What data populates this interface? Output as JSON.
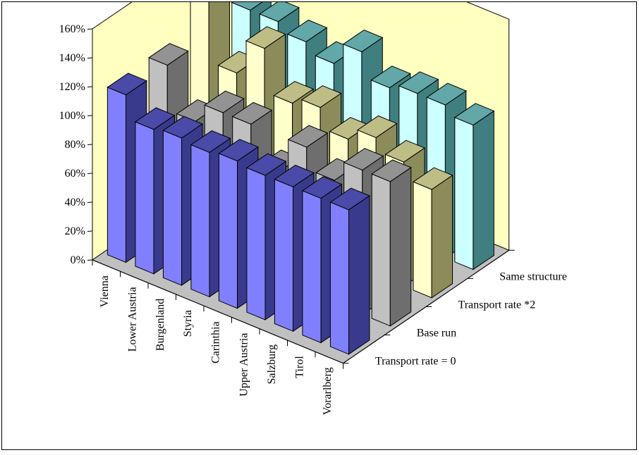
{
  "chart_data": {
    "type": "bar",
    "subtype": "3d-column",
    "categories": [
      "Vienna",
      "Lower Austria",
      "Burgenland",
      "Styria",
      "Carinthia",
      "Upper Austria",
      "Salzburg",
      "Tirol",
      "Vorarlberg"
    ],
    "series": [
      {
        "name": "Transport rate = 0",
        "values": [
          116,
          100,
          102,
          100,
          102,
          100,
          100,
          100,
          100
        ],
        "colors": {
          "front": "#8080ff",
          "side": "#3a3a8c",
          "top": "#4a4aa8"
        }
      },
      {
        "name": "Base run",
        "values": [
          117,
          86,
          100,
          100,
          75,
          100,
          85,
          100,
          100
        ],
        "colors": {
          "front": "#c0c0c0",
          "side": "#6e6e6e",
          "top": "#939393"
        }
      },
      {
        "name": "Transport rate *2",
        "values": [
          149,
          100,
          125,
          95,
          100,
          86,
          95,
          86,
          75
        ],
        "colors": {
          "front": "#ffffcc",
          "side": "#8c8c5a",
          "top": "#bdbd85"
        }
      },
      {
        "name": "Same structure",
        "values": [
          116,
          116,
          110,
          103,
          119,
          102,
          106,
          106,
          100
        ],
        "colors": {
          "front": "#ccffff",
          "side": "#3f7f7f",
          "top": "#62a8a8"
        }
      }
    ],
    "ylim": [
      0,
      160
    ],
    "yticks": [
      "0%",
      "20%",
      "40%",
      "60%",
      "80%",
      "100%",
      "120%",
      "140%",
      "160%"
    ],
    "wall_color": "#ffffc0",
    "floor_color": "#c0c0c0",
    "grid": false,
    "legend": "depth-axis-labels"
  }
}
